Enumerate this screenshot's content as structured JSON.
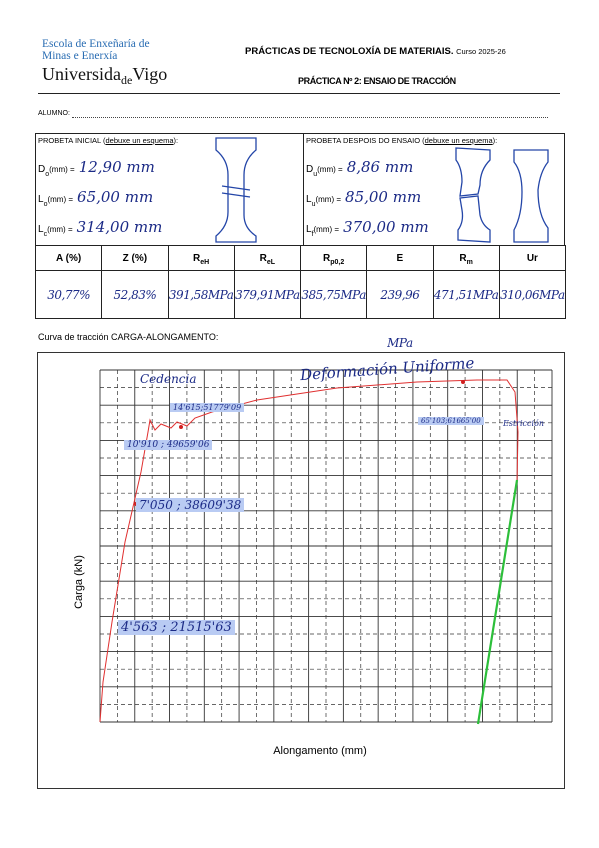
{
  "header": {
    "logo_line1": "Escola de Enxeñaría de",
    "logo_line2": "Minas e Enerxía",
    "university": [
      "Universida",
      "de",
      "Vigo"
    ],
    "title": "PRÁCTICAS DE TECNOLOXÍA DE MATERIAIS.",
    "course": "Curso 2025-26",
    "subtitle": "PRÁCTICA Nº 2: ENSAIO DE TRACCIÓN"
  },
  "student_label": "ALUMNO:",
  "initial": {
    "heading_prefix": "PROBETA INICIAL (",
    "heading_link": "debuxe un esquema",
    "heading_suffix": "):",
    "fields": [
      {
        "symbol": "D",
        "sub": "o",
        "unit": "(mm) =",
        "value": "12,90 mm"
      },
      {
        "symbol": "L",
        "sub": "o",
        "unit": "(mm) =",
        "value": "65,00 mm"
      },
      {
        "symbol": "L",
        "sub": "c",
        "unit": "(mm) =",
        "value": "314,00 mm"
      }
    ]
  },
  "after": {
    "heading_prefix": "PROBETA DESPOIS DO ENSAIO (",
    "heading_link": "debuxe un esquema",
    "heading_suffix": "):",
    "fields": [
      {
        "symbol": "D",
        "sub": "u",
        "unit": "(mm) =",
        "value": "8,86 mm"
      },
      {
        "symbol": "L",
        "sub": "u",
        "unit": "(mm) =",
        "value": "85,00 mm"
      },
      {
        "symbol": "L",
        "sub": "f",
        "unit": "(mm) =",
        "value": "370,00 mm"
      }
    ]
  },
  "table": {
    "headers": [
      {
        "text": "A (%)"
      },
      {
        "text": "Z (%)"
      },
      {
        "text": "R",
        "sub": "eH"
      },
      {
        "text": "R",
        "sub": "eL"
      },
      {
        "text": "R",
        "sub": "p0,2"
      },
      {
        "text": "E"
      },
      {
        "text": "R",
        "sub": "m"
      },
      {
        "text": "Ur"
      }
    ],
    "values": [
      "30,77%",
      "52,83%",
      "391,58MPa",
      "379,91MPa",
      "385,75MPa",
      "239,96 MPa",
      "471,51MPa",
      "310,06MPa"
    ]
  },
  "curve": {
    "caption": "Curva de tracción CARGA-ALONGAMENTO:",
    "y_label": "Carga (kN)",
    "x_label": "Alongamento (mm)",
    "annotations": [
      "Cedencia",
      "Deformación Uniforme",
      "Estricción",
      "14'615;51779'09",
      "10'910 ; 49659'06",
      "7'050 ; 38609'38",
      "4'563 ; 21515'63",
      "65'103;61665'00"
    ]
  }
}
